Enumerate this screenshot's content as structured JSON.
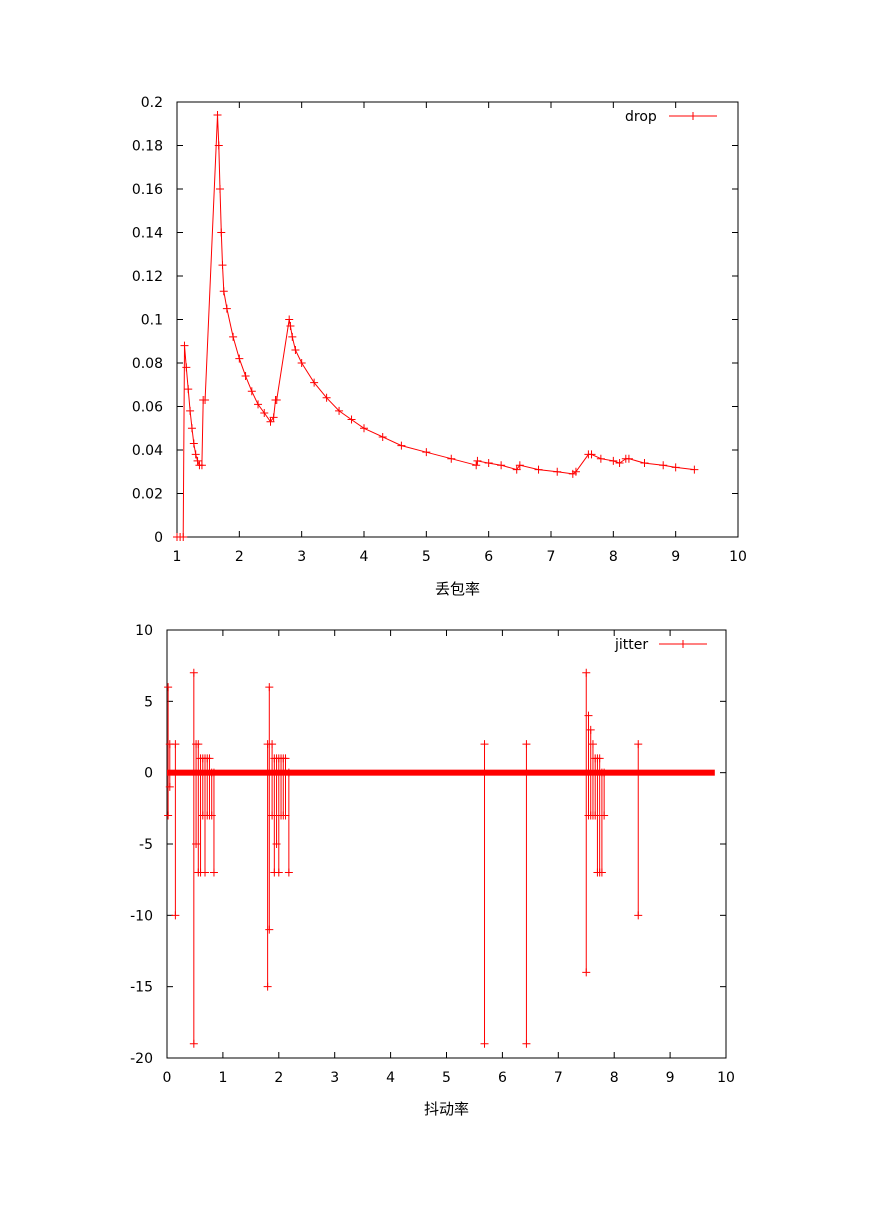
{
  "chart_data": [
    {
      "type": "line",
      "xlabel": "丢包率",
      "ylabel": "",
      "xlim": [
        1,
        10
      ],
      "ylim": [
        0,
        0.2
      ],
      "xticks": [
        "1",
        "2",
        "3",
        "4",
        "5",
        "6",
        "7",
        "8",
        "9",
        "10"
      ],
      "yticks": [
        "0",
        "0.02",
        "0.04",
        "0.06",
        "0.08",
        "0.1",
        "0.12",
        "0.14",
        "0.16",
        "0.18",
        "0.2"
      ],
      "grid": false,
      "legend_position": "top-right",
      "series": [
        {
          "name": "drop",
          "color": "#ff0000",
          "marker": "plus",
          "x": [
            1.0,
            1.05,
            1.1,
            1.12,
            1.15,
            1.18,
            1.21,
            1.24,
            1.27,
            1.3,
            1.33,
            1.36,
            1.4,
            1.42,
            1.45,
            1.65,
            1.67,
            1.69,
            1.71,
            1.73,
            1.75,
            1.8,
            1.9,
            2.0,
            2.1,
            2.2,
            2.3,
            2.4,
            2.5,
            2.55,
            2.58,
            2.6,
            2.8,
            2.82,
            2.85,
            2.9,
            3.0,
            3.2,
            3.4,
            3.6,
            3.8,
            4.0,
            4.3,
            4.6,
            5.0,
            5.4,
            5.8,
            5.82,
            6.0,
            6.2,
            6.45,
            6.5,
            6.8,
            7.1,
            7.35,
            7.4,
            7.6,
            7.65,
            7.8,
            8.0,
            8.1,
            8.2,
            8.25,
            8.5,
            8.8,
            9.0,
            9.3
          ],
          "y": [
            0,
            0,
            0,
            0.088,
            0.078,
            0.068,
            0.058,
            0.05,
            0.043,
            0.038,
            0.035,
            0.033,
            0.033,
            0.063,
            0.063,
            0.194,
            0.18,
            0.16,
            0.14,
            0.125,
            0.113,
            0.105,
            0.092,
            0.082,
            0.074,
            0.067,
            0.061,
            0.057,
            0.053,
            0.055,
            0.063,
            0.063,
            0.1,
            0.097,
            0.092,
            0.086,
            0.08,
            0.071,
            0.064,
            0.058,
            0.054,
            0.05,
            0.046,
            0.042,
            0.039,
            0.036,
            0.033,
            0.035,
            0.034,
            0.033,
            0.031,
            0.033,
            0.031,
            0.03,
            0.029,
            0.03,
            0.038,
            0.038,
            0.036,
            0.035,
            0.034,
            0.036,
            0.036,
            0.034,
            0.033,
            0.032,
            0.031
          ]
        }
      ]
    },
    {
      "type": "line",
      "xlabel": "抖动率",
      "ylabel": "",
      "xlim": [
        0,
        10
      ],
      "ylim": [
        -20,
        10
      ],
      "xticks": [
        "0",
        "1",
        "2",
        "3",
        "4",
        "5",
        "6",
        "7",
        "8",
        "9",
        "10"
      ],
      "yticks": [
        "-20",
        "-15",
        "-10",
        "-5",
        "0",
        "5",
        "10"
      ],
      "grid": false,
      "legend_position": "top-right",
      "series": [
        {
          "name": "jitter",
          "color": "#ff0000",
          "marker": "plus",
          "baseline_x": [
            0,
            9.8
          ],
          "spikes": [
            {
              "x": 0.02,
              "min": -3,
              "max": 6
            },
            {
              "x": 0.05,
              "min": -1,
              "max": 2
            },
            {
              "x": 0.15,
              "min": -10,
              "max": 2
            },
            {
              "x": 0.48,
              "min": -19,
              "max": 7
            },
            {
              "x": 0.52,
              "min": -5,
              "max": 2
            },
            {
              "x": 0.56,
              "min": -7,
              "max": 2
            },
            {
              "x": 0.6,
              "min": -7,
              "max": 1
            },
            {
              "x": 0.64,
              "min": -3,
              "max": 1
            },
            {
              "x": 0.68,
              "min": -7,
              "max": 1
            },
            {
              "x": 0.72,
              "min": -3,
              "max": 1
            },
            {
              "x": 0.76,
              "min": -3,
              "max": 1
            },
            {
              "x": 0.8,
              "min": -3,
              "max": 0
            },
            {
              "x": 0.84,
              "min": -7,
              "max": 0
            },
            {
              "x": 1.8,
              "min": -15,
              "max": 2
            },
            {
              "x": 1.83,
              "min": -11,
              "max": 6
            },
            {
              "x": 1.88,
              "min": -3,
              "max": 2
            },
            {
              "x": 1.92,
              "min": -7,
              "max": 1
            },
            {
              "x": 1.96,
              "min": -5,
              "max": 1
            },
            {
              "x": 2.0,
              "min": -7,
              "max": 1
            },
            {
              "x": 2.04,
              "min": -3,
              "max": 1
            },
            {
              "x": 2.08,
              "min": -3,
              "max": 1
            },
            {
              "x": 2.12,
              "min": -3,
              "max": 1
            },
            {
              "x": 2.18,
              "min": -7,
              "max": 0
            },
            {
              "x": 5.68,
              "min": -19,
              "max": 2
            },
            {
              "x": 6.43,
              "min": -19,
              "max": 2
            },
            {
              "x": 7.5,
              "min": -14,
              "max": 7
            },
            {
              "x": 7.54,
              "min": -3,
              "max": 4
            },
            {
              "x": 7.58,
              "min": -3,
              "max": 3
            },
            {
              "x": 7.62,
              "min": -3,
              "max": 2
            },
            {
              "x": 7.66,
              "min": -3,
              "max": 1
            },
            {
              "x": 7.7,
              "min": -7,
              "max": 1
            },
            {
              "x": 7.74,
              "min": -7,
              "max": 1
            },
            {
              "x": 7.78,
              "min": -7,
              "max": 0
            },
            {
              "x": 7.82,
              "min": -3,
              "max": 0
            },
            {
              "x": 8.43,
              "min": -10,
              "max": 2
            }
          ]
        }
      ]
    }
  ]
}
